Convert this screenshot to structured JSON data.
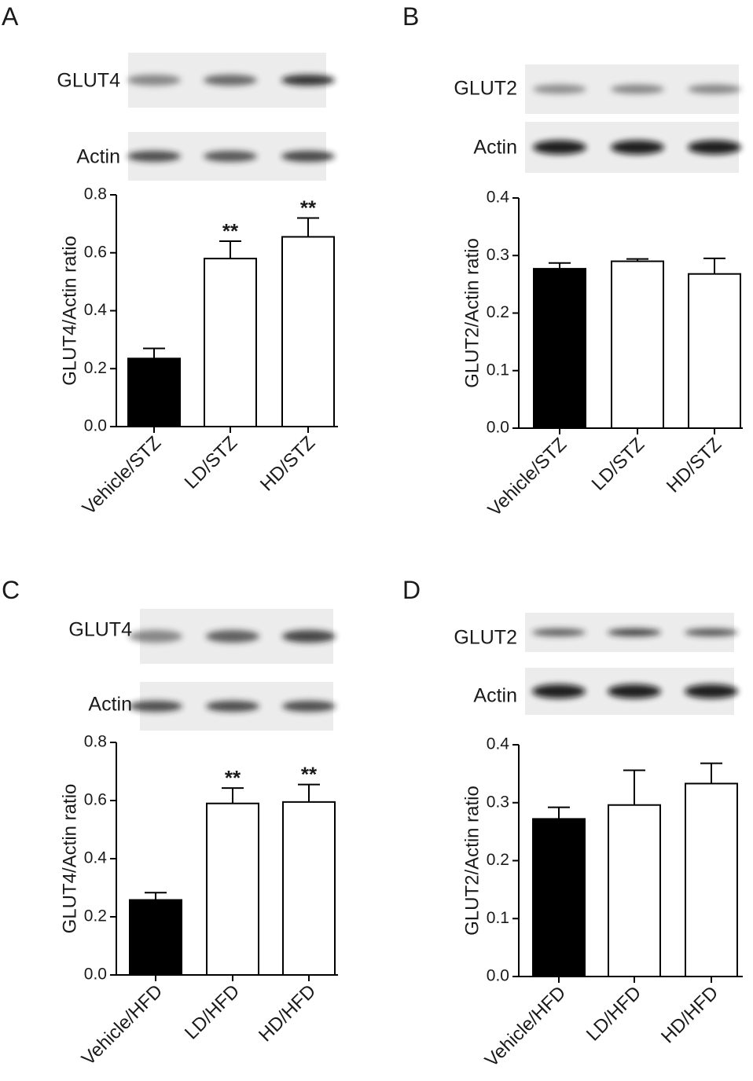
{
  "chart_data": [
    {
      "type": "bar",
      "panel": "A",
      "blots": [
        "GLUT4",
        "Actin"
      ],
      "y_label": "GLUT4/Actin ratio",
      "categories": [
        "Vehicle/STZ",
        "LD/STZ",
        "HD/STZ"
      ],
      "values": [
        0.235,
        0.58,
        0.655
      ],
      "errors": [
        0.035,
        0.06,
        0.065
      ],
      "colors": [
        "#000000",
        "#ffffff",
        "#ffffff"
      ],
      "significance": [
        null,
        "**",
        "**"
      ],
      "ylim": [
        0,
        0.8
      ],
      "yticks": [
        {
          "value": 0,
          "label": "0.0"
        },
        {
          "value": 0.2,
          "label": "0.2"
        },
        {
          "value": 0.4,
          "label": "0.4"
        },
        {
          "value": 0.6,
          "label": "0.6"
        },
        {
          "value": 0.8,
          "label": "0.8"
        }
      ]
    },
    {
      "type": "bar",
      "panel": "B",
      "blots": [
        "GLUT2",
        "Actin"
      ],
      "y_label": "GLUT2/Actin ratio",
      "categories": [
        "Vehicle/STZ",
        "LD/STZ",
        "HD/STZ"
      ],
      "values": [
        0.277,
        0.29,
        0.268
      ],
      "errors": [
        0.01,
        0.004,
        0.027
      ],
      "colors": [
        "#000000",
        "#ffffff",
        "#ffffff"
      ],
      "significance": [
        null,
        null,
        null
      ],
      "ylim": [
        0,
        0.4
      ],
      "yticks": [
        {
          "value": 0,
          "label": "0.0"
        },
        {
          "value": 0.1,
          "label": "0.1"
        },
        {
          "value": 0.2,
          "label": "0.2"
        },
        {
          "value": 0.3,
          "label": "0.3"
        },
        {
          "value": 0.4,
          "label": "0.4"
        }
      ]
    },
    {
      "type": "bar",
      "panel": "C",
      "blots": [
        "GLUT4",
        "Actin"
      ],
      "y_label": "GLUT4/Actin ratio",
      "categories": [
        "Vehicle/HFD",
        "LD/HFD",
        "HD/HFD"
      ],
      "values": [
        0.258,
        0.59,
        0.595
      ],
      "errors": [
        0.025,
        0.053,
        0.06
      ],
      "colors": [
        "#000000",
        "#ffffff",
        "#ffffff"
      ],
      "significance": [
        null,
        "**",
        "**"
      ],
      "ylim": [
        0,
        0.8
      ],
      "yticks": [
        {
          "value": 0,
          "label": "0.0"
        },
        {
          "value": 0.2,
          "label": "0.2"
        },
        {
          "value": 0.4,
          "label": "0.4"
        },
        {
          "value": 0.6,
          "label": "0.6"
        },
        {
          "value": 0.8,
          "label": "0.8"
        }
      ]
    },
    {
      "type": "bar",
      "panel": "D",
      "blots": [
        "GLUT2",
        "Actin"
      ],
      "y_label": "GLUT2/Actin ratio",
      "categories": [
        "Vehicle/HFD",
        "LD/HFD",
        "HD/HFD"
      ],
      "values": [
        0.272,
        0.296,
        0.333
      ],
      "errors": [
        0.02,
        0.06,
        0.035
      ],
      "colors": [
        "#000000",
        "#ffffff",
        "#ffffff"
      ],
      "significance": [
        null,
        null,
        null
      ],
      "ylim": [
        0,
        0.4
      ],
      "yticks": [
        {
          "value": 0,
          "label": "0.0"
        },
        {
          "value": 0.1,
          "label": "0.1"
        },
        {
          "value": 0.2,
          "label": "0.2"
        },
        {
          "value": 0.3,
          "label": "0.3"
        },
        {
          "value": 0.4,
          "label": "0.4"
        }
      ]
    }
  ]
}
